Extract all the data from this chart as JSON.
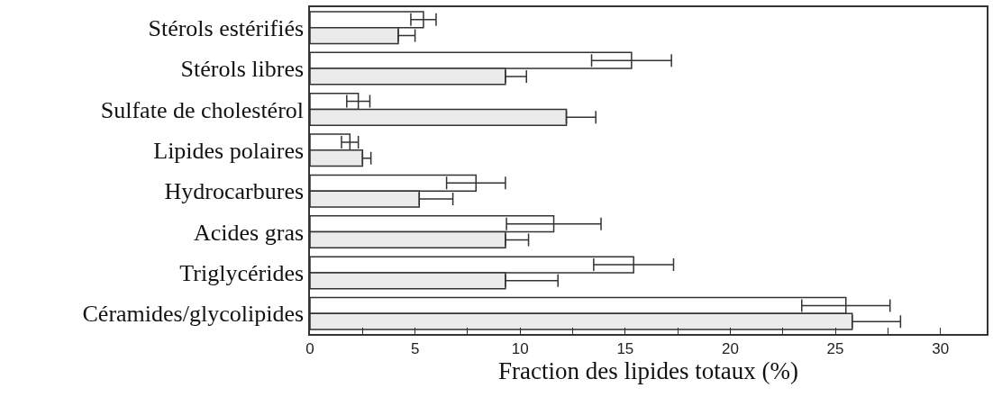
{
  "chart_data": {
    "type": "bar",
    "orientation": "horizontal",
    "xlabel": "Fraction des lipides totaux (%)",
    "categories": [
      "Stérols estérifiés",
      "Stérols libres",
      "Sulfate de cholestérol",
      "Lipides polaires",
      "Hydrocarbures",
      "Acides gras",
      "Triglycérides",
      "Céramides/glycolipides"
    ],
    "series": [
      {
        "color": "#ffffff",
        "values": [
          5.4,
          15.3,
          2.3,
          1.9,
          7.9,
          11.6,
          15.4,
          25.5
        ],
        "errors": [
          0.6,
          1.9,
          0.55,
          0.4,
          1.4,
          2.25,
          1.9,
          2.1
        ]
      },
      {
        "color": "#ebebeb",
        "values": [
          4.2,
          9.3,
          12.2,
          2.5,
          5.2,
          9.3,
          9.3,
          25.8
        ],
        "errors": [
          [
            4.2,
            5.0
          ],
          [
            9.3,
            10.3
          ],
          [
            12.2,
            13.6
          ],
          [
            2.5,
            2.9
          ],
          [
            5.2,
            6.8
          ],
          [
            9.3,
            10.4
          ],
          [
            9.3,
            11.8
          ],
          [
            25.8,
            28.1
          ]
        ]
      }
    ],
    "xlim": [
      0,
      32.2
    ],
    "xticks": [
      0,
      {
        "value": 2.5,
        "label": null
      },
      5,
      {
        "value": 7.5,
        "label": null
      },
      10,
      {
        "value": 12.5,
        "label": null
      },
      15,
      {
        "value": 17.5,
        "label": null
      },
      20,
      {
        "value": 22.5,
        "label": null
      },
      25,
      {
        "value": 27.5,
        "label": null
      },
      30
    ],
    "grid": false
  }
}
